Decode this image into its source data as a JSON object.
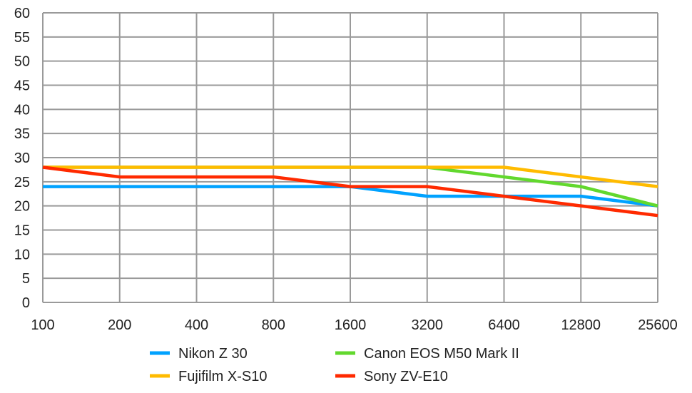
{
  "chart_data": {
    "type": "line",
    "categories": [
      "100",
      "200",
      "400",
      "800",
      "1600",
      "3200",
      "6400",
      "12800",
      "25600"
    ],
    "ylim": [
      0,
      60
    ],
    "yticks": [
      "0",
      "5",
      "10",
      "15",
      "20",
      "25",
      "30",
      "35",
      "40",
      "45",
      "50",
      "55",
      "60"
    ],
    "grid": true,
    "legend_placement": "bottom",
    "series": [
      {
        "name": "Nikon Z 30",
        "color": "#00a2ff",
        "values": [
          24,
          24,
          24,
          24,
          24,
          22,
          22,
          22,
          20
        ]
      },
      {
        "name": "Canon EOS M50 Mark II",
        "color": "#62d82e",
        "values": [
          28,
          28,
          28,
          28,
          28,
          28,
          26,
          24,
          20
        ]
      },
      {
        "name": "Fujifilm X-S10",
        "color": "#ffbb00",
        "values": [
          28,
          28,
          28,
          28,
          28,
          28,
          28,
          26,
          24
        ]
      },
      {
        "name": "Sony ZV-E10",
        "color": "#ff2a00",
        "values": [
          28,
          26,
          26,
          26,
          24,
          24,
          22,
          20,
          18
        ]
      }
    ]
  }
}
